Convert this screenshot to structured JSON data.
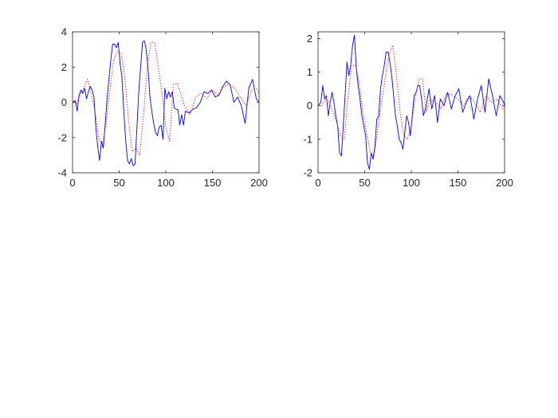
{
  "figure": {
    "background": "#ffffff"
  },
  "chart_data": [
    {
      "type": "line",
      "title": "",
      "xlabel": "",
      "ylabel": "",
      "xlim": [
        0,
        200
      ],
      "ylim": [
        -4,
        4
      ],
      "xticks": [
        0,
        50,
        100,
        150,
        200
      ],
      "yticks": [
        -4,
        -2,
        0,
        2,
        4
      ],
      "xtick_labels": [
        "0",
        "50",
        "100",
        "150",
        "200"
      ],
      "ytick_labels": [
        "-4",
        "-2",
        "0",
        "2",
        "4"
      ],
      "grid": false,
      "legend": "none",
      "series": [
        {
          "color": "#0000ff",
          "style": "solid",
          "x": [
            0,
            3,
            5,
            7,
            9,
            11,
            13,
            15,
            17,
            19,
            21,
            23,
            25,
            27,
            29,
            31,
            33,
            35,
            37,
            39,
            41,
            43,
            45,
            47,
            49,
            51,
            53,
            55,
            57,
            59,
            61,
            63,
            65,
            67,
            69,
            71,
            73,
            75,
            77,
            79,
            81,
            83,
            85,
            87,
            89,
            91,
            93,
            95,
            97,
            99,
            101,
            103,
            105,
            107,
            109,
            111,
            113,
            115,
            117,
            119,
            121,
            125,
            129,
            133,
            137,
            141,
            145,
            149,
            153,
            157,
            161,
            165,
            169,
            173,
            177,
            181,
            185,
            189,
            193,
            197,
            200
          ],
          "y": [
            0.0,
            0.1,
            -0.5,
            0.4,
            0.7,
            0.5,
            0.8,
            0.2,
            0.6,
            0.9,
            0.7,
            0.3,
            -1.5,
            -2.5,
            -3.3,
            -2.2,
            -2.6,
            -1.3,
            0.2,
            1.3,
            2.4,
            3.3,
            3.3,
            3.1,
            3.4,
            2.2,
            1.4,
            -0.6,
            -2.2,
            -3.3,
            -3.5,
            -3.2,
            -3.6,
            -3.5,
            -1.5,
            0.6,
            2.0,
            3.4,
            3.5,
            3.0,
            1.9,
            0.3,
            -0.5,
            -1.2,
            -1.7,
            -1.9,
            -1.4,
            -1.3,
            -2.1,
            0.8,
            0.2,
            0.6,
            0.3,
            0.6,
            -0.3,
            -0.4,
            -0.4,
            -1.3,
            -0.7,
            -1.3,
            -0.5,
            -0.6,
            -0.4,
            -0.3,
            0.0,
            0.6,
            0.5,
            0.7,
            0.3,
            0.4,
            0.9,
            1.2,
            1.0,
            0.0,
            0.3,
            -0.2,
            -1.2,
            0.8,
            1.3,
            0.2,
            0.0
          ]
        },
        {
          "color": "#ff0000",
          "style": "dotted",
          "x": [
            0,
            4,
            8,
            12,
            16,
            20,
            24,
            28,
            32,
            36,
            40,
            44,
            48,
            52,
            56,
            60,
            64,
            68,
            72,
            76,
            80,
            84,
            88,
            92,
            96,
            100,
            104,
            108,
            112,
            116,
            120,
            126,
            132,
            138,
            144,
            150,
            156,
            162,
            168,
            174,
            180,
            186,
            192,
            198,
            200
          ],
          "y": [
            0.0,
            -0.1,
            0.4,
            0.8,
            1.3,
            0.5,
            -0.5,
            -2.0,
            -2.5,
            -1.2,
            0.7,
            2.4,
            2.9,
            2.8,
            1.5,
            -1.0,
            -2.8,
            -2.6,
            -3.0,
            -0.8,
            2.0,
            3.4,
            3.4,
            2.0,
            0.5,
            -1.4,
            -2.2,
            1.0,
            1.1,
            0.5,
            -0.2,
            -0.7,
            0.3,
            0.5,
            0.2,
            0.7,
            0.4,
            0.9,
            1.0,
            0.8,
            0.3,
            -0.2,
            0.7,
            0.8,
            0.4
          ]
        }
      ]
    },
    {
      "type": "line",
      "title": "",
      "xlabel": "",
      "ylabel": "",
      "xlim": [
        0,
        200
      ],
      "ylim": [
        -2,
        2.2
      ],
      "xticks": [
        0,
        50,
        100,
        150,
        200
      ],
      "yticks": [
        -2,
        -1,
        0,
        1,
        2
      ],
      "xtick_labels": [
        "0",
        "50",
        "100",
        "150",
        "200"
      ],
      "ytick_labels": [
        "-2",
        "-1",
        "0",
        "1",
        "2"
      ],
      "grid": false,
      "legend": "none",
      "series": [
        {
          "color": "#0000ff",
          "style": "solid",
          "x": [
            0,
            3,
            5,
            7,
            9,
            11,
            13,
            15,
            17,
            19,
            21,
            23,
            25,
            27,
            29,
            31,
            33,
            35,
            37,
            39,
            41,
            43,
            45,
            47,
            49,
            51,
            53,
            55,
            57,
            59,
            61,
            63,
            65,
            67,
            69,
            71,
            73,
            75,
            77,
            79,
            81,
            83,
            85,
            87,
            89,
            91,
            93,
            95,
            97,
            99,
            101,
            103,
            105,
            107,
            109,
            111,
            113,
            116,
            119,
            122,
            125,
            128,
            131,
            135,
            139,
            143,
            147,
            151,
            155,
            159,
            163,
            167,
            171,
            175,
            179,
            183,
            187,
            191,
            195,
            199,
            200
          ],
          "y": [
            0.0,
            0.1,
            0.6,
            0.2,
            0.3,
            -0.3,
            0.1,
            0.4,
            0.1,
            -0.3,
            -0.6,
            -1.4,
            -1.5,
            -0.6,
            0.3,
            1.3,
            0.9,
            1.2,
            1.8,
            2.1,
            1.1,
            0.6,
            0.2,
            -0.3,
            -0.6,
            -0.9,
            -1.7,
            -1.9,
            -1.4,
            -1.6,
            -1.2,
            -0.4,
            -0.3,
            0.5,
            0.9,
            1.2,
            1.6,
            1.6,
            1.3,
            0.9,
            0.3,
            -0.3,
            -0.6,
            -1.0,
            -1.1,
            -1.3,
            -0.8,
            -0.3,
            -0.5,
            -0.9,
            -0.3,
            0.3,
            0.4,
            0.6,
            0.6,
            0.2,
            -0.3,
            0.0,
            0.5,
            -0.1,
            0.3,
            -0.5,
            0.2,
            0.0,
            0.4,
            -0.1,
            0.3,
            0.5,
            -0.2,
            0.1,
            0.3,
            -0.4,
            0.2,
            0.6,
            -0.2,
            0.8,
            0.3,
            -0.3,
            0.3,
            0.1,
            0.0
          ]
        },
        {
          "color": "#ff0000",
          "style": "dotted",
          "x": [
            0,
            4,
            8,
            12,
            16,
            20,
            24,
            28,
            32,
            36,
            40,
            44,
            48,
            52,
            56,
            60,
            64,
            68,
            72,
            76,
            80,
            84,
            88,
            92,
            96,
            100,
            104,
            108,
            112,
            116,
            120,
            126,
            132,
            138,
            144,
            150,
            156,
            162,
            168,
            174,
            180,
            186,
            192,
            198,
            200
          ],
          "y": [
            0.0,
            0.0,
            0.2,
            0.1,
            -0.2,
            -0.5,
            -0.9,
            -1.0,
            0.2,
            1.2,
            1.2,
            0.7,
            -0.2,
            -0.8,
            -1.4,
            -1.5,
            -0.7,
            0.1,
            0.8,
            1.5,
            1.8,
            0.9,
            -0.2,
            -0.9,
            -1.0,
            -0.6,
            0.2,
            0.8,
            0.8,
            -0.2,
            0.2,
            0.1,
            -0.1,
            0.4,
            0.3,
            0.2,
            0.0,
            0.3,
            0.1,
            -0.2,
            0.3,
            0.1,
            0.2,
            -0.1,
            0.0
          ]
        }
      ]
    }
  ]
}
